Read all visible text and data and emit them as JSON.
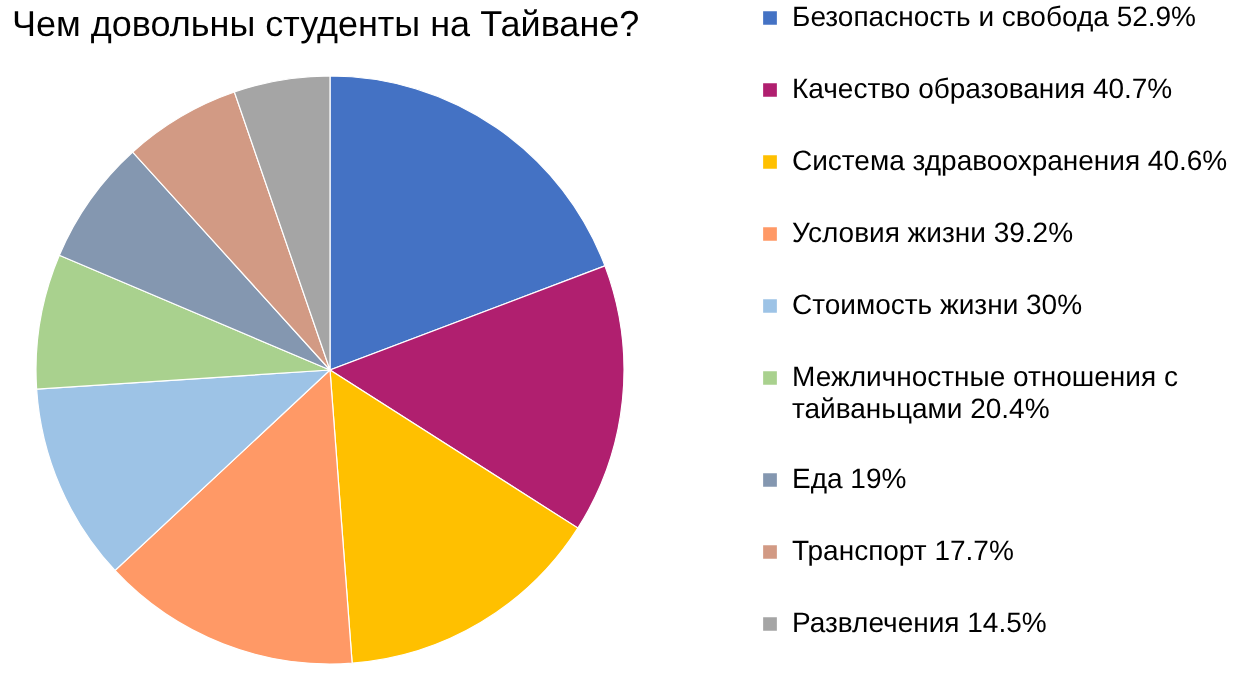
{
  "chart_data": {
    "type": "pie",
    "title": "Чем довольны студенты на Тайване?",
    "categories": [
      "Безопасность и свобода",
      "Качество образования",
      "Система здравоохранения",
      "Условия жизни",
      "Стоимость жизни",
      "Межличностные отношения с тайваньцами",
      "Еда",
      "Транспорт",
      "Развлечения"
    ],
    "values": [
      52.9,
      40.7,
      40.6,
      39.2,
      30,
      20.4,
      19,
      17.7,
      14.5
    ],
    "value_labels": [
      "52.9%",
      "40.7%",
      "40.6%",
      "39.2%",
      "30%",
      "20.4%",
      "19%",
      "17.7%",
      "14.5%"
    ],
    "colors": [
      "#4472c4",
      "#b01f6f",
      "#ffc000",
      "#ff9966",
      "#9dc3e6",
      "#a9d18e",
      "#8497b0",
      "#d29a84",
      "#a5a5a5"
    ],
    "legend": "right"
  }
}
